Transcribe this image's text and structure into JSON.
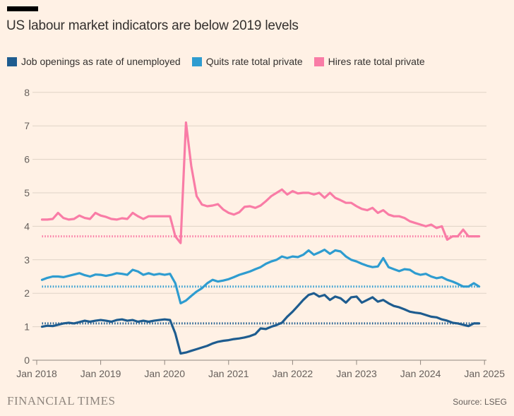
{
  "page": {
    "background": "#FFF1E5"
  },
  "header": {
    "title": "US labour market indicators are below 2019 levels"
  },
  "footer": {
    "brand": "FINANCIAL TIMES",
    "source": "Source: LSEG"
  },
  "chart_data": {
    "type": "line",
    "title": "US labour market indicators are below 2019 levels",
    "x_frequency": "monthly",
    "x_range": [
      "Feb 2018",
      "Dec 2024"
    ],
    "x_tick_labels": [
      "Jan 2018",
      "Jan 2019",
      "Jan 2020",
      "Jan 2021",
      "Jan 2022",
      "Jan 2023",
      "Jan 2024",
      "Jan 2025"
    ],
    "y_ticks": [
      0,
      1,
      2,
      3,
      4,
      5,
      6,
      7,
      8
    ],
    "ylim": [
      0,
      8
    ],
    "grid": "horizontal",
    "legend_position": "top-left",
    "background": "#FFF1E5",
    "gridline_color": "#DFD3C6",
    "axis_color": "#8F867E",
    "label_color": "#66605C",
    "reference_line_style": "dotted",
    "series": [
      {
        "name": "Job openings as rate of unemployed",
        "color": "#1E5C8F",
        "reference_level": 1.1,
        "values": [
          1.0,
          1.03,
          1.02,
          1.06,
          1.1,
          1.12,
          1.1,
          1.14,
          1.18,
          1.15,
          1.18,
          1.2,
          1.18,
          1.15,
          1.2,
          1.22,
          1.18,
          1.2,
          1.15,
          1.18,
          1.15,
          1.18,
          1.2,
          1.22,
          1.2,
          0.8,
          0.2,
          0.23,
          0.28,
          0.33,
          0.38,
          0.43,
          0.5,
          0.55,
          0.58,
          0.6,
          0.63,
          0.65,
          0.68,
          0.72,
          0.78,
          0.95,
          0.93,
          1.0,
          1.05,
          1.12,
          1.3,
          1.45,
          1.62,
          1.8,
          1.95,
          2.0,
          1.9,
          1.95,
          1.8,
          1.9,
          1.85,
          1.72,
          1.88,
          1.9,
          1.72,
          1.8,
          1.88,
          1.75,
          1.8,
          1.7,
          1.62,
          1.58,
          1.52,
          1.45,
          1.42,
          1.4,
          1.35,
          1.3,
          1.28,
          1.22,
          1.18,
          1.12,
          1.1,
          1.06,
          1.02,
          1.1,
          1.1
        ]
      },
      {
        "name": "Quits rate total private",
        "color": "#2E9CD0",
        "reference_level": 2.2,
        "values": [
          2.4,
          2.46,
          2.5,
          2.5,
          2.48,
          2.52,
          2.56,
          2.6,
          2.54,
          2.5,
          2.56,
          2.55,
          2.52,
          2.55,
          2.6,
          2.58,
          2.55,
          2.7,
          2.65,
          2.55,
          2.6,
          2.55,
          2.58,
          2.55,
          2.58,
          2.3,
          1.7,
          1.78,
          1.92,
          2.05,
          2.15,
          2.3,
          2.4,
          2.35,
          2.38,
          2.42,
          2.48,
          2.55,
          2.6,
          2.65,
          2.72,
          2.78,
          2.88,
          2.95,
          3.0,
          3.1,
          3.05,
          3.1,
          3.08,
          3.15,
          3.28,
          3.15,
          3.22,
          3.3,
          3.18,
          3.28,
          3.25,
          3.1,
          3.0,
          2.95,
          2.88,
          2.82,
          2.78,
          2.8,
          3.05,
          2.78,
          2.72,
          2.66,
          2.72,
          2.7,
          2.6,
          2.55,
          2.58,
          2.5,
          2.45,
          2.48,
          2.4,
          2.35,
          2.28,
          2.2,
          2.2,
          2.3,
          2.2
        ]
      },
      {
        "name": "Hires rate total private",
        "color": "#F97CA6",
        "reference_level": 3.7,
        "values": [
          4.2,
          4.2,
          4.22,
          4.4,
          4.25,
          4.2,
          4.22,
          4.32,
          4.25,
          4.22,
          4.4,
          4.32,
          4.28,
          4.22,
          4.2,
          4.24,
          4.22,
          4.4,
          4.3,
          4.22,
          4.3,
          4.3,
          4.3,
          4.3,
          4.3,
          3.7,
          3.5,
          7.1,
          5.8,
          4.9,
          4.65,
          4.6,
          4.62,
          4.66,
          4.5,
          4.4,
          4.35,
          4.42,
          4.58,
          4.6,
          4.55,
          4.62,
          4.75,
          4.9,
          5.0,
          5.1,
          4.95,
          5.05,
          4.98,
          5.0,
          5.0,
          4.95,
          5.0,
          4.85,
          5.0,
          4.85,
          4.78,
          4.7,
          4.7,
          4.6,
          4.52,
          4.48,
          4.55,
          4.4,
          4.48,
          4.35,
          4.3,
          4.3,
          4.25,
          4.15,
          4.1,
          4.05,
          4.0,
          4.05,
          3.95,
          4.0,
          3.6,
          3.7,
          3.7,
          3.9,
          3.7,
          3.7,
          3.7
        ]
      }
    ]
  }
}
